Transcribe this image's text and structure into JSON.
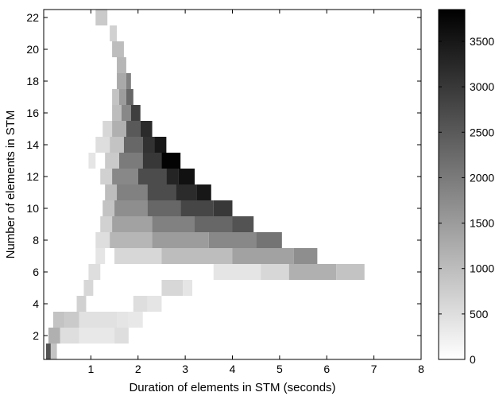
{
  "chart_data": {
    "type": "heatmap",
    "title": "",
    "xlabel": "Duration of elements in STM (seconds)",
    "ylabel": "Number of elements in STM",
    "xlim": [
      0,
      8
    ],
    "ylim": [
      0.5,
      22.5
    ],
    "x_ticks": [
      1,
      2,
      3,
      4,
      5,
      6,
      7,
      8
    ],
    "y_ticks": [
      2,
      4,
      6,
      8,
      10,
      12,
      14,
      16,
      18,
      20,
      22
    ],
    "colormap": "gray (white = 0, black = max)",
    "colorbar": {
      "range": [
        0,
        3850
      ],
      "ticks": [
        0,
        500,
        1000,
        1500,
        2000,
        2500,
        3000,
        3500
      ],
      "tick_labels": [
        "0",
        "500",
        "1000",
        "1500",
        "2000",
        "2500",
        "3000",
        "3500"
      ]
    },
    "grid": false,
    "cells_note": "each row: y = number of elements; segments [x_start_seconds, x_end_seconds, count]",
    "rows": [
      {
        "y": 1,
        "segments": [
          [
            0.05,
            0.15,
            2600
          ],
          [
            0.15,
            0.28,
            900
          ]
        ]
      },
      {
        "y": 2,
        "segments": [
          [
            0.1,
            0.35,
            1200
          ],
          [
            0.35,
            0.75,
            500
          ],
          [
            0.75,
            1.5,
            350
          ],
          [
            1.5,
            1.8,
            500
          ]
        ]
      },
      {
        "y": 3,
        "segments": [
          [
            0.2,
            0.45,
            900
          ],
          [
            0.45,
            0.75,
            800
          ],
          [
            0.75,
            1.55,
            450
          ],
          [
            1.55,
            1.8,
            400
          ],
          [
            1.8,
            2.1,
            350
          ]
        ]
      },
      {
        "y": 4,
        "segments": [
          [
            0.7,
            0.9,
            700
          ],
          [
            1.9,
            2.2,
            500
          ],
          [
            2.2,
            2.5,
            400
          ]
        ]
      },
      {
        "y": 5,
        "segments": [
          [
            0.85,
            1.05,
            600
          ],
          [
            2.5,
            2.95,
            600
          ],
          [
            2.95,
            3.15,
            400
          ]
        ]
      },
      {
        "y": 6,
        "segments": [
          [
            0.95,
            1.2,
            500
          ],
          [
            3.6,
            4.6,
            400
          ],
          [
            4.6,
            5.2,
            600
          ],
          [
            5.2,
            6.2,
            1200
          ],
          [
            6.2,
            6.8,
            900
          ]
        ]
      },
      {
        "y": 7,
        "segments": [
          [
            1.1,
            1.3,
            400
          ],
          [
            1.5,
            2.5,
            600
          ],
          [
            2.5,
            4.0,
            1000
          ],
          [
            4.0,
            5.3,
            1400
          ],
          [
            5.3,
            5.8,
            1700
          ]
        ]
      },
      {
        "y": 8,
        "segments": [
          [
            1.1,
            1.4,
            500
          ],
          [
            1.4,
            2.3,
            1100
          ],
          [
            2.3,
            3.5,
            1500
          ],
          [
            3.5,
            4.5,
            1800
          ],
          [
            4.5,
            5.05,
            2100
          ]
        ]
      },
      {
        "y": 9,
        "segments": [
          [
            1.2,
            1.45,
            700
          ],
          [
            1.45,
            2.3,
            1400
          ],
          [
            2.3,
            3.2,
            1900
          ],
          [
            3.2,
            4.0,
            2300
          ],
          [
            4.0,
            4.45,
            2600
          ]
        ]
      },
      {
        "y": 10,
        "segments": [
          [
            1.25,
            1.5,
            900
          ],
          [
            1.5,
            2.2,
            1700
          ],
          [
            2.2,
            2.9,
            2300
          ],
          [
            2.9,
            3.6,
            2800
          ],
          [
            3.6,
            4.0,
            3000
          ]
        ]
      },
      {
        "y": 11,
        "segments": [
          [
            1.3,
            1.55,
            1000
          ],
          [
            1.55,
            2.2,
            1900
          ],
          [
            2.2,
            2.8,
            2700
          ],
          [
            2.8,
            3.25,
            3200
          ],
          [
            3.25,
            3.55,
            3500
          ]
        ]
      },
      {
        "y": 12,
        "segments": [
          [
            1.2,
            1.45,
            700
          ],
          [
            1.45,
            2.0,
            1800
          ],
          [
            2.0,
            2.6,
            2700
          ],
          [
            2.6,
            2.85,
            3300
          ],
          [
            2.85,
            3.2,
            3600
          ]
        ]
      },
      {
        "y": 13,
        "segments": [
          [
            0.95,
            1.1,
            400
          ],
          [
            1.3,
            1.6,
            800
          ],
          [
            1.6,
            2.1,
            2000
          ],
          [
            2.1,
            2.5,
            3000
          ],
          [
            2.5,
            2.9,
            3800
          ]
        ]
      },
      {
        "y": 14,
        "segments": [
          [
            1.1,
            1.4,
            500
          ],
          [
            1.4,
            1.7,
            900
          ],
          [
            1.7,
            2.1,
            2300
          ],
          [
            2.1,
            2.35,
            3100
          ],
          [
            2.35,
            2.6,
            3500
          ]
        ]
      },
      {
        "y": 15,
        "segments": [
          [
            1.25,
            1.45,
            600
          ],
          [
            1.45,
            1.75,
            1200
          ],
          [
            1.75,
            2.05,
            2500
          ],
          [
            2.05,
            2.3,
            3200
          ]
        ]
      },
      {
        "y": 16,
        "segments": [
          [
            1.45,
            1.65,
            1000
          ],
          [
            1.65,
            1.85,
            1800
          ],
          [
            1.85,
            2.05,
            2900
          ]
        ]
      },
      {
        "y": 17,
        "segments": [
          [
            1.45,
            1.6,
            900
          ],
          [
            1.6,
            1.75,
            1500
          ],
          [
            1.75,
            1.9,
            2300
          ]
        ]
      },
      {
        "y": 18,
        "segments": [
          [
            1.55,
            1.75,
            1300
          ],
          [
            1.75,
            1.85,
            1900
          ]
        ]
      },
      {
        "y": 19,
        "segments": [
          [
            1.55,
            1.75,
            1100
          ]
        ]
      },
      {
        "y": 20,
        "segments": [
          [
            1.45,
            1.7,
            1000
          ]
        ]
      },
      {
        "y": 21,
        "segments": [
          [
            1.4,
            1.55,
            700
          ]
        ]
      },
      {
        "y": 22,
        "segments": [
          [
            1.1,
            1.35,
            800
          ]
        ]
      }
    ]
  }
}
